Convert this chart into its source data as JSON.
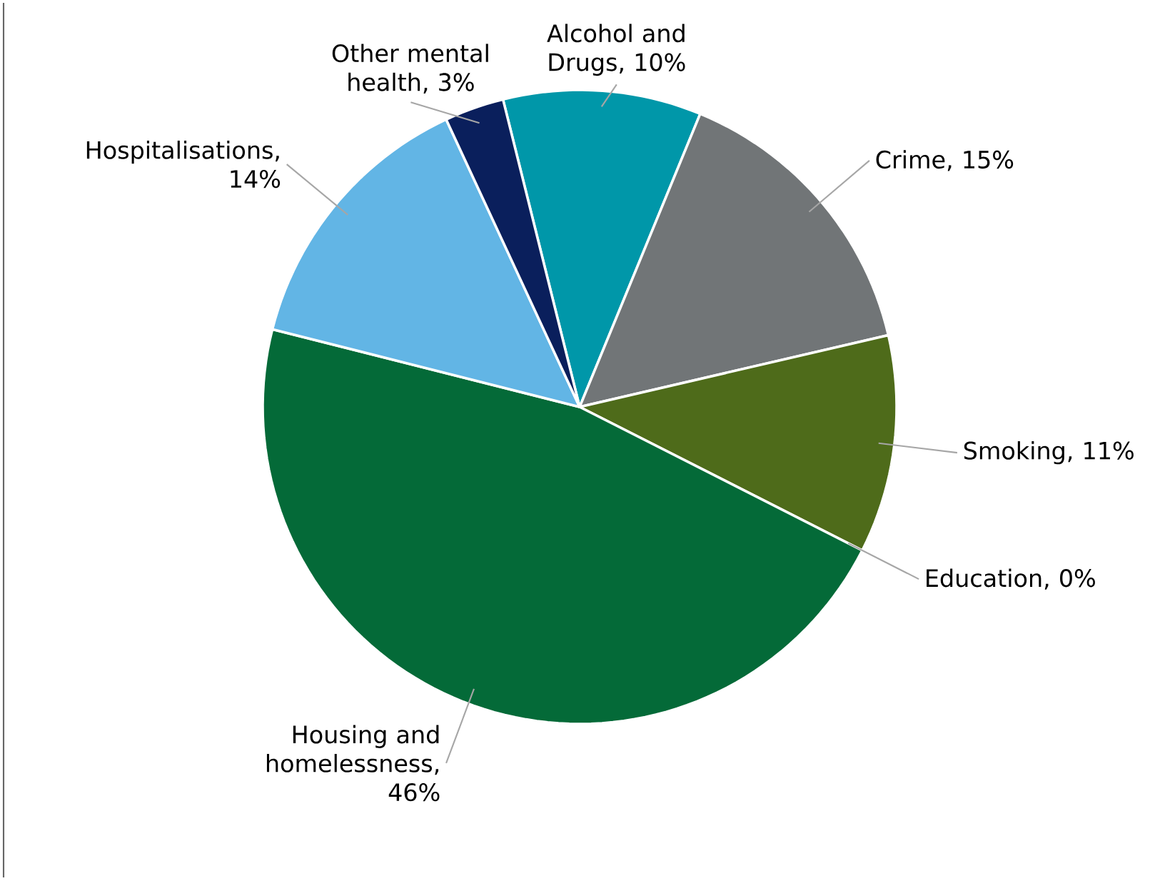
{
  "chart_data": {
    "type": "pie",
    "categories": [
      "Alcohol and Drugs",
      "Crime",
      "Smoking",
      "Education",
      "Housing and homelessness",
      "Hospitalisations",
      "Other mental health"
    ],
    "values": [
      10,
      15,
      11,
      0,
      46,
      14,
      3
    ],
    "value_labels": [
      ", 10%",
      ", 15%",
      ", 11%",
      ", 0%",
      ", 46%",
      ", 14%",
      ", 3%"
    ],
    "colors": [
      "#0097a9",
      "#717577",
      "#4e6b1a",
      "#c8c8c8",
      "#046a38",
      "#62b5e5",
      "#0a1f5c"
    ],
    "legend": false
  }
}
